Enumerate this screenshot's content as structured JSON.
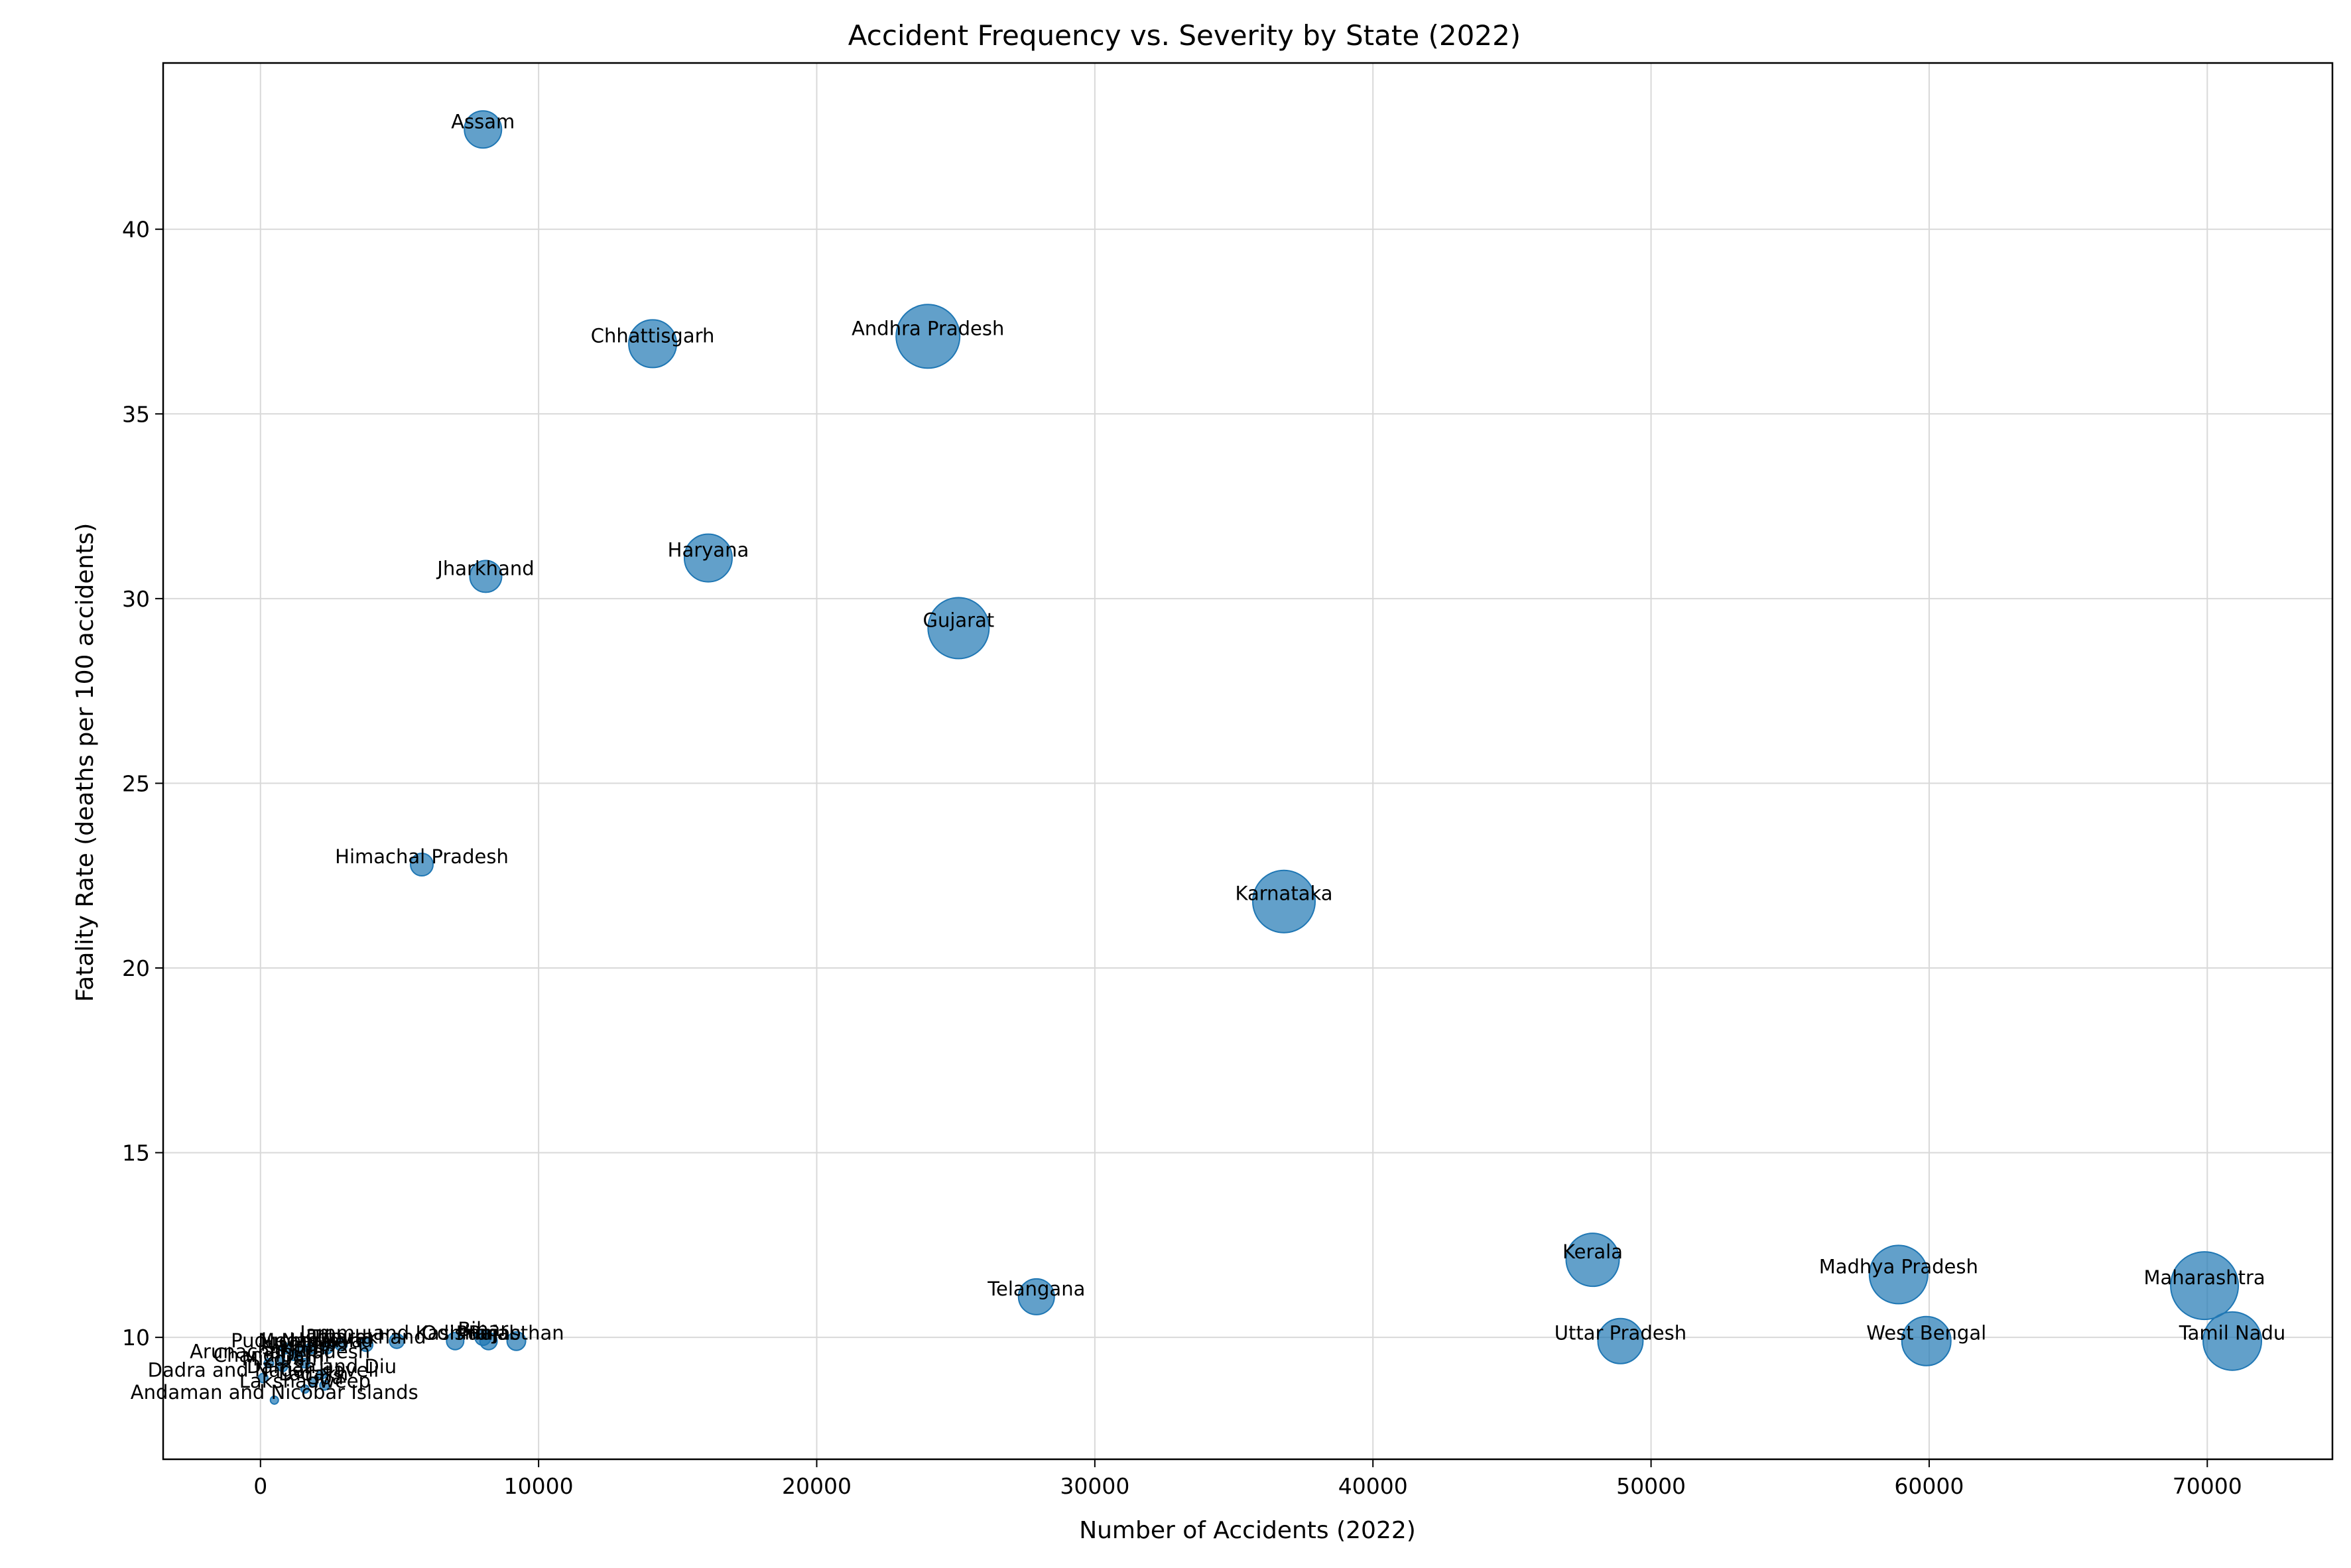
{
  "chart_data": {
    "type": "scatter",
    "title": "Accident Frequency vs. Severity by State (2022)",
    "xlabel": "Number of Accidents (2022)",
    "ylabel": "Fatality Rate (deaths per 100 accidents)",
    "xlim": [
      -3500,
      74500
    ],
    "ylim": [
      6.7,
      44.5
    ],
    "xticks": [
      0,
      10000,
      20000,
      30000,
      40000,
      50000,
      60000,
      70000
    ],
    "yticks": [
      10,
      15,
      20,
      25,
      30,
      35,
      40
    ],
    "grid": true,
    "color": "#1f77b4",
    "points": [
      {
        "label": "Assam",
        "x": 8000,
        "y": 42.7,
        "size": 28
      },
      {
        "label": "Chhattisgarh",
        "x": 14100,
        "y": 36.9,
        "size": 36
      },
      {
        "label": "Andhra Pradesh",
        "x": 24000,
        "y": 37.1,
        "size": 48
      },
      {
        "label": "Jharkhand",
        "x": 8100,
        "y": 30.6,
        "size": 24
      },
      {
        "label": "Haryana",
        "x": 16100,
        "y": 31.1,
        "size": 36
      },
      {
        "label": "Gujarat",
        "x": 25100,
        "y": 29.2,
        "size": 46
      },
      {
        "label": "Himachal Pradesh",
        "x": 5800,
        "y": 22.8,
        "size": 17
      },
      {
        "label": "Karnataka",
        "x": 36800,
        "y": 21.8,
        "size": 47
      },
      {
        "label": "Telangana",
        "x": 27900,
        "y": 11.1,
        "size": 27
      },
      {
        "label": "Kerala",
        "x": 47900,
        "y": 12.1,
        "size": 40
      },
      {
        "label": "Madhya Pradesh",
        "x": 58900,
        "y": 11.7,
        "size": 44
      },
      {
        "label": "Maharashtra",
        "x": 69900,
        "y": 11.4,
        "size": 51
      },
      {
        "label": "Uttar Pradesh",
        "x": 48900,
        "y": 9.9,
        "size": 34
      },
      {
        "label": "West Bengal",
        "x": 59900,
        "y": 9.9,
        "size": 37
      },
      {
        "label": "Tamil Nadu",
        "x": 70900,
        "y": 9.9,
        "size": 44
      },
      {
        "label": "Rajasthan",
        "x": 9200,
        "y": 9.9,
        "size": 14
      },
      {
        "label": "Punjab",
        "x": 8200,
        "y": 9.9,
        "size": 13
      },
      {
        "label": "Bihar",
        "x": 8000,
        "y": 10.0,
        "size": 12
      },
      {
        "label": "Odisha",
        "x": 7000,
        "y": 9.9,
        "size": 13
      },
      {
        "label": "Jammu and Kashmir",
        "x": 4900,
        "y": 9.9,
        "size": 11
      },
      {
        "label": "Uttarakhand",
        "x": 3800,
        "y": 9.8,
        "size": 10
      },
      {
        "label": "Tripura",
        "x": 2900,
        "y": 9.8,
        "size": 9
      },
      {
        "label": "Nagaland",
        "x": 2400,
        "y": 9.7,
        "size": 8
      },
      {
        "label": "Meghalaya",
        "x": 1800,
        "y": 9.7,
        "size": 8
      },
      {
        "label": "Manipur",
        "x": 1400,
        "y": 9.6,
        "size": 8
      },
      {
        "label": "Puducherry",
        "x": 900,
        "y": 9.7,
        "size": 8
      },
      {
        "label": "Sikkim",
        "x": 1200,
        "y": 9.5,
        "size": 7
      },
      {
        "label": "Arunachal Pradesh",
        "x": 700,
        "y": 9.4,
        "size": 7
      },
      {
        "label": "Chandigarh",
        "x": 300,
        "y": 9.3,
        "size": 7
      },
      {
        "label": "Delhi",
        "x": 1600,
        "y": 9.3,
        "size": 7
      },
      {
        "label": "Mizoram",
        "x": 800,
        "y": 9.2,
        "size": 7
      },
      {
        "label": "Daman and Diu",
        "x": 2200,
        "y": 9.0,
        "size": 7
      },
      {
        "label": "Dadra and Nagar Haveli",
        "x": 100,
        "y": 8.9,
        "size": 7
      },
      {
        "label": "Ladakh",
        "x": 1900,
        "y": 8.8,
        "size": 7
      },
      {
        "label": "Goa",
        "x": 2300,
        "y": 8.7,
        "size": 7
      },
      {
        "label": "Lakshadweep",
        "x": 1600,
        "y": 8.6,
        "size": 6
      },
      {
        "label": "Andaman and Nicobar Islands",
        "x": 500,
        "y": 8.3,
        "size": 6
      }
    ]
  }
}
